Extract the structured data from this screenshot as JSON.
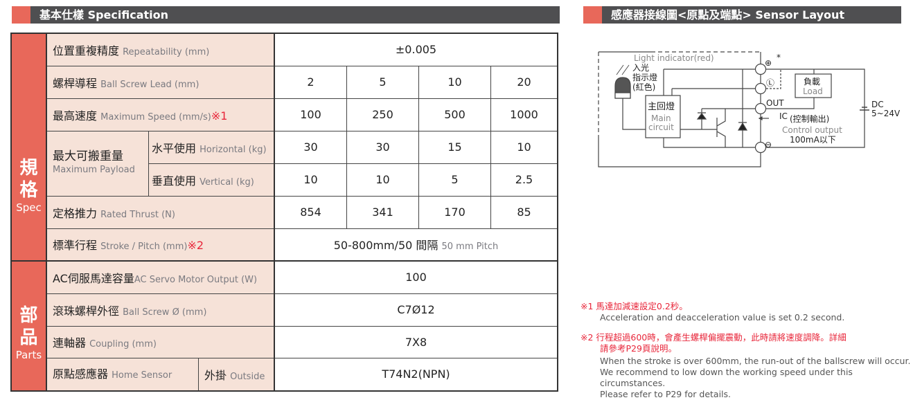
{
  "spec": {
    "title": "基本仕樣 Specification",
    "side_spec": {
      "zh1": "規",
      "zh2": "格",
      "en": "Spec"
    },
    "side_parts": {
      "zh1": "部",
      "zh2": "品",
      "en": "Parts"
    },
    "rows": {
      "repeat": {
        "zh": "位置重複精度",
        "en": "Repeatability (mm)",
        "value": "±0.005"
      },
      "lead": {
        "zh": "螺桿導程",
        "en": "Ball Screw Lead (mm)",
        "values": [
          "2",
          "5",
          "10",
          "20"
        ]
      },
      "speed": {
        "zh": "最高速度",
        "en": "Maximum Speed (mm/s)",
        "note": "※1",
        "values": [
          "100",
          "250",
          "500",
          "1000"
        ]
      },
      "payload": {
        "zh": "最大可搬重量",
        "en": "Maximum Payload",
        "h": {
          "zh": "水平使用",
          "en": "Horizontal (kg)",
          "values": [
            "30",
            "30",
            "15",
            "10"
          ]
        },
        "v": {
          "zh": "垂直使用",
          "en": "Vertical (kg)",
          "values": [
            "10",
            "10",
            "5",
            "2.5"
          ]
        }
      },
      "thrust": {
        "zh": "定格推力",
        "en": "Rated Thrust (N)",
        "values": [
          "854",
          "341",
          "170",
          "85"
        ]
      },
      "stroke": {
        "zh": "標準行程",
        "en": "Stroke / Pitch (mm)",
        "note": "※2",
        "value": "50-800mm/50 間隔",
        "value_en": "50 mm Pitch"
      },
      "motor": {
        "zh": "AC伺服馬達容量",
        "en": "AC Servo Motor Output (W)",
        "value": "100"
      },
      "screw": {
        "zh": "滾珠螺桿外徑",
        "en": "Ball Screw Ø (mm)",
        "value": "C7Ø12"
      },
      "coupling": {
        "zh": "連軸器",
        "en": "Coupling (mm)",
        "value": "7X8"
      },
      "sensor": {
        "zh": "原點感應器",
        "en": "Home Sensor",
        "sub_zh": "外掛",
        "sub_en": "Outside",
        "value": "T74N2(NPN)"
      }
    }
  },
  "sensor_layout": {
    "title": "感應器接線圖<原點及端點>  Sensor Layout",
    "light_en": "Light indicator(red)",
    "light_zh1": "入光",
    "light_zh2": "指示燈",
    "light_zh3": "(紅色)",
    "plus": "⊕",
    "star": "*",
    "l": "Ⓛ",
    "out": "OUT",
    "minus": "⊖",
    "main_zh": "主回燈",
    "main_en1": "Main",
    "main_en2": "circuit",
    "load_zh": "負載",
    "load_en": "Load",
    "dc": "DC",
    "dc_v": "5~24V",
    "ic": "IC",
    "ic_zh": "(控制輸出)",
    "ctrl_en": "Control output",
    "ctrl_val": "100mA以下"
  },
  "notes": {
    "n1_zh": "※1 馬達加減速設定0.2秒。",
    "n1_en": "Acceleration and deacceleration value is set 0.2 second.",
    "n2_zh1": "※2 行程超過600時，會產生螺桿偏擺震動，此時請將速度調降。詳細",
    "n2_zh2": "請參考P29頁說明。",
    "n2_en1": "When the stroke is over 600mm, the run-out of the ballscrew will occur.",
    "n2_en2": "We recommend to low down the working speed under this circumstances.",
    "n2_en3": "Please refer to P29 for details."
  },
  "colors": {
    "accent": "#e8685a",
    "header": "#4f4f51",
    "label_bg": "#f6e2d8",
    "note": "#e8263a"
  }
}
